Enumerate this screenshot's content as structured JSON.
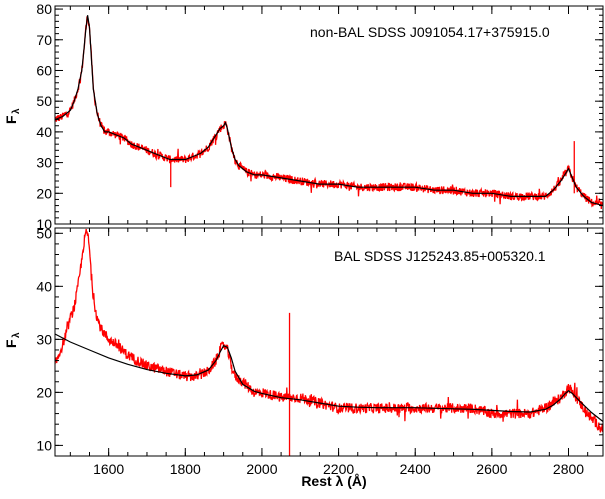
{
  "chart_data": [
    {
      "type": "line",
      "panel": "top",
      "annotation": "non-BAL SDSS J091054.17+375915.0",
      "ylabel": "F",
      "ylabel_sub": "λ",
      "xlim": [
        1460,
        2890
      ],
      "ylim": [
        10,
        81
      ],
      "yticks": [
        10,
        20,
        30,
        40,
        50,
        60,
        70,
        80
      ],
      "spectrum_color": "#ff0000",
      "fit_color": "#000000",
      "series": [
        {
          "x": [
            1460,
            1480,
            1500,
            1510,
            1520,
            1530,
            1535,
            1540,
            1545,
            1550,
            1555,
            1560,
            1570,
            1580,
            1590,
            1600,
            1620,
            1640,
            1660,
            1680,
            1700,
            1720,
            1740,
            1760,
            1780,
            1800,
            1820,
            1840,
            1860,
            1870,
            1880,
            1890,
            1900,
            1905,
            1910,
            1915,
            1920,
            1930,
            1940,
            1960,
            1980,
            2000,
            2050,
            2100,
            2150,
            2200,
            2250,
            2300,
            2350,
            2400,
            2450,
            2500,
            2550,
            2600,
            2650,
            2700,
            2740,
            2760,
            2780,
            2790,
            2800,
            2810,
            2820,
            2840,
            2860,
            2890
          ],
          "y": [
            44,
            45,
            47,
            50,
            54,
            60,
            66,
            73,
            78,
            74,
            64,
            54,
            46,
            42,
            40,
            40,
            39,
            38,
            36,
            35,
            34,
            33,
            32,
            31,
            31,
            31,
            32,
            33,
            35,
            37,
            39,
            41,
            42,
            43,
            41,
            38,
            35,
            31,
            29,
            27,
            26,
            26,
            25,
            24,
            23,
            23,
            22,
            22,
            22,
            22,
            21,
            21,
            20,
            20,
            19,
            19,
            19,
            21,
            24,
            26,
            28,
            25,
            22,
            19,
            17,
            16
          ]
        }
      ],
      "spikes": [
        {
          "x": 1762,
          "y": [
            22,
            31
          ]
        },
        {
          "x": 2815,
          "y": [
            20,
            37
          ]
        }
      ]
    },
    {
      "type": "line",
      "panel": "bottom",
      "annotation": "BAL SDSS J125243.85+005320.1",
      "xlabel": "Rest λ (Å)",
      "ylabel": "F",
      "ylabel_sub": "λ",
      "xlim": [
        1460,
        2890
      ],
      "ylim": [
        8,
        51
      ],
      "xticks": [
        1600,
        1800,
        2000,
        2200,
        2400,
        2600,
        2800
      ],
      "yticks": [
        10,
        20,
        30,
        40,
        50
      ],
      "spectrum_color": "#ff0000",
      "fit_color": "#000000",
      "series": [
        {
          "x": [
            1460,
            1480,
            1500,
            1510,
            1520,
            1530,
            1535,
            1540,
            1545,
            1550,
            1555,
            1560,
            1570,
            1580,
            1600,
            1620,
            1650,
            1700,
            1750,
            1800,
            1830,
            1860,
            1880,
            1890,
            1900,
            1910,
            1920,
            1930,
            1950,
            1980,
            2000,
            2050,
            2100,
            2150,
            2200,
            2250,
            2300,
            2350,
            2400,
            2450,
            2500,
            2550,
            2600,
            2650,
            2700,
            2740,
            2760,
            2780,
            2790,
            2800,
            2810,
            2830,
            2860,
            2890
          ],
          "y": [
            25,
            29,
            34,
            36,
            40,
            45,
            48,
            50,
            50,
            47,
            42,
            38,
            34,
            32,
            30,
            29,
            27,
            25,
            24,
            23,
            23,
            24,
            26,
            28,
            29,
            28,
            25,
            23,
            22,
            20,
            20,
            19,
            19,
            18,
            17,
            17,
            17,
            17,
            17,
            17,
            17,
            17,
            16,
            16,
            16,
            17,
            18,
            19,
            20,
            21,
            20,
            18,
            15,
            13
          ]
        },
        {
          "name": "",
          "role": "fit",
          "x": [
            1460,
            1500,
            1550,
            1600,
            1650,
            1700,
            1750,
            1800,
            1830,
            1860,
            1880,
            1890,
            1900,
            1910,
            1920,
            1930,
            1950,
            1980,
            2000,
            2050,
            2100,
            2150,
            2200,
            2250,
            2300,
            2350,
            2400,
            2450,
            2500,
            2550,
            2600,
            2650,
            2700,
            2740,
            2760,
            2780,
            2790,
            2800,
            2810,
            2830,
            2860,
            2890
          ],
          "y": [
            31,
            29.5,
            28,
            26.5,
            25.3,
            24.3,
            23.6,
            23.1,
            23.3,
            24.2,
            26,
            27.5,
            28.8,
            28.5,
            26.5,
            24,
            21.5,
            20.2,
            19.8,
            19,
            18.6,
            18,
            17.4,
            17.2,
            17.1,
            17.1,
            17.1,
            17,
            16.9,
            16.8,
            16.6,
            16.4,
            16.3,
            16.8,
            17.6,
            18.8,
            19.7,
            20.3,
            19.8,
            18.3,
            16.2,
            14.5
          ]
        }
      ],
      "spikes": [
        {
          "x": 2072,
          "y": [
            8,
            35
          ]
        }
      ]
    }
  ]
}
